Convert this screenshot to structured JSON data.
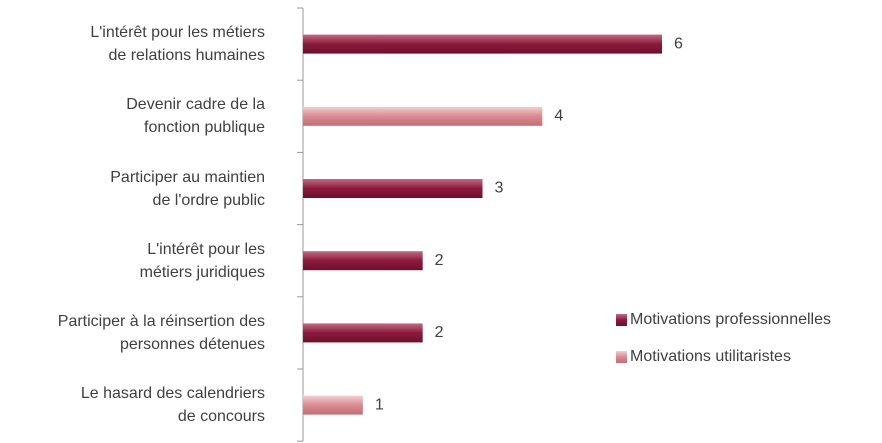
{
  "chart_data": {
    "type": "bar",
    "orientation": "horizontal",
    "categories": [
      "L'intérêt pour les métiers\nde relations humaines",
      "Devenir cadre de la\nfonction publique",
      "Participer au maintien\nde l'ordre public",
      "L'intérêt pour les\nmétiers juridiques",
      "Participer à la réinsertion des\npersonnes détenues",
      "Le hasard des calendriers\nde concours"
    ],
    "series": [
      {
        "name": "Motivations professionnelles",
        "color": "#8b1a3c",
        "values": [
          6,
          null,
          3,
          2,
          2,
          null
        ]
      },
      {
        "name": "Motivations utilitaristes",
        "color": "#d98a90",
        "values": [
          null,
          4,
          null,
          null,
          null,
          1
        ]
      }
    ],
    "xlim": [
      0,
      6
    ],
    "legend": "right"
  }
}
